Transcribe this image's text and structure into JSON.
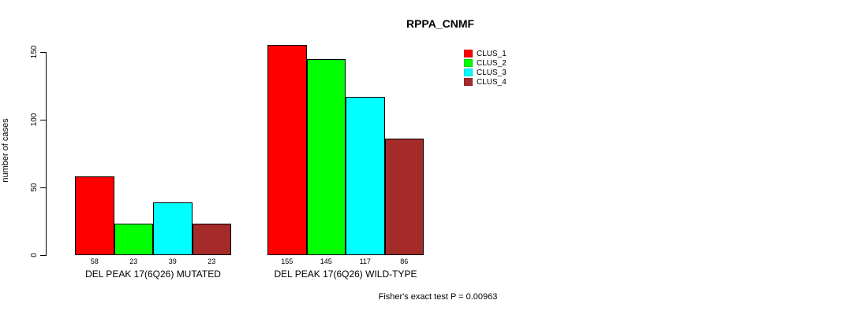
{
  "chart_data": {
    "type": "bar",
    "title": "RPPA_CNMF",
    "xlabel": "",
    "ylabel": "number of cases",
    "ylim": [
      0,
      150
    ],
    "yticks": [
      0,
      50,
      100,
      150
    ],
    "grid": false,
    "legend_position": "top-right",
    "series_names": [
      "CLUS_1",
      "CLUS_2",
      "CLUS_3",
      "CLUS_4"
    ],
    "series_colors": [
      "#ff0000",
      "#00ff00",
      "#00ffff",
      "#a52a2a"
    ],
    "groups": [
      {
        "label": "DEL PEAK 17(6Q26) MUTATED",
        "values": [
          58,
          23,
          39,
          23
        ],
        "value_labels": [
          "58",
          "23",
          "39",
          "23"
        ]
      },
      {
        "label": "DEL PEAK 17(6Q26) WILD-TYPE",
        "values": [
          155,
          145,
          117,
          86
        ],
        "value_labels": [
          "155",
          "145",
          "117",
          "86"
        ]
      }
    ],
    "footnote": "Fisher's exact test P = 0.00963"
  }
}
